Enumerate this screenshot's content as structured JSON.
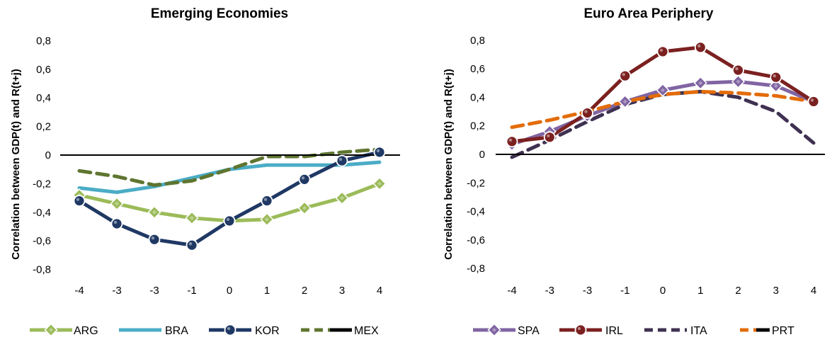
{
  "chart_data": [
    {
      "type": "line",
      "title": "Emerging Economies",
      "ylabel": "Correlation between GDP(t) and R(t+j)",
      "xlabel": "",
      "categories": [
        "-4",
        "-3",
        "-3",
        "-1",
        "0",
        "1",
        "2",
        "3",
        "4"
      ],
      "ylim": [
        -0.8,
        0.8
      ],
      "yticks": [
        "0,8",
        "0,6",
        "0,4",
        "0,2",
        "0",
        "-0,2",
        "-0,4",
        "-0,6",
        "-0,8"
      ],
      "ytick_values": [
        0.8,
        0.6,
        0.4,
        0.2,
        0,
        -0.2,
        -0.4,
        -0.6,
        -0.8
      ],
      "grid": false,
      "legend": "bottom",
      "series": [
        {
          "name": "ARG",
          "values": [
            -0.28,
            -0.34,
            -0.4,
            -0.44,
            -0.46,
            -0.45,
            -0.37,
            -0.3,
            -0.2
          ],
          "color": "#9bbb59",
          "style": "solid",
          "marker": "diamond"
        },
        {
          "name": "BRA",
          "values": [
            -0.23,
            -0.26,
            -0.22,
            -0.16,
            -0.1,
            -0.07,
            -0.07,
            -0.07,
            -0.05
          ],
          "color": "#4bacc6",
          "style": "solid",
          "marker": "none"
        },
        {
          "name": "KOR",
          "values": [
            -0.32,
            -0.48,
            -0.59,
            -0.63,
            -0.46,
            -0.32,
            -0.17,
            -0.04,
            0.02
          ],
          "color": "#1f3864",
          "style": "solid",
          "marker": "circle"
        },
        {
          "name": "",
          "values": [
            -0.11,
            -0.15,
            -0.21,
            -0.18,
            -0.1,
            -0.01,
            -0.01,
            0.02,
            0.04
          ],
          "color": "#5f7530",
          "style": "dashed",
          "marker": "none"
        },
        {
          "name": "MEX",
          "values": [
            0,
            0,
            0,
            0,
            0,
            0,
            0,
            0,
            0
          ],
          "color": "#000000",
          "style": "solid",
          "marker": "none"
        }
      ]
    },
    {
      "type": "line",
      "title": "Euro Area Periphery",
      "ylabel": "Correlation between GDP(t) and R(t+j)",
      "xlabel": "",
      "categories": [
        "-4",
        "-3",
        "-3",
        "-1",
        "0",
        "1",
        "2",
        "3",
        "4"
      ],
      "ylim": [
        -0.8,
        0.8
      ],
      "yticks": [
        "0,8",
        "0,6",
        "0,4",
        "0,2",
        "0",
        "-0,2",
        "-0,4",
        "-0,6",
        "-0,8"
      ],
      "ytick_values": [
        0.8,
        0.6,
        0.4,
        0.2,
        0,
        -0.2,
        -0.4,
        -0.6,
        -0.8
      ],
      "grid": false,
      "legend": "bottom",
      "series": [
        {
          "name": "SPA",
          "values": [
            0.07,
            0.16,
            0.27,
            0.37,
            0.45,
            0.5,
            0.51,
            0.48,
            0.37
          ],
          "color": "#8064a2",
          "style": "solid",
          "marker": "diamond"
        },
        {
          "name": "IRL",
          "values": [
            0.09,
            0.12,
            0.29,
            0.55,
            0.72,
            0.75,
            0.59,
            0.54,
            0.37
          ],
          "color": "#7b2020",
          "style": "solid",
          "marker": "circle"
        },
        {
          "name": "ITA",
          "values": [
            -0.02,
            0.1,
            0.23,
            0.35,
            0.42,
            0.44,
            0.4,
            0.3,
            0.08
          ],
          "color": "#3f3151",
          "style": "dashed",
          "marker": "none"
        },
        {
          "name": "",
          "values": [
            0.19,
            0.24,
            0.3,
            0.37,
            0.42,
            0.44,
            0.43,
            0.41,
            0.37
          ],
          "color": "#e36c09",
          "style": "dashed",
          "marker": "none"
        },
        {
          "name": "PRT",
          "values": [
            0,
            0,
            0,
            0,
            0,
            0,
            0,
            0,
            0
          ],
          "color": "#000000",
          "style": "solid",
          "marker": "none"
        }
      ]
    }
  ]
}
